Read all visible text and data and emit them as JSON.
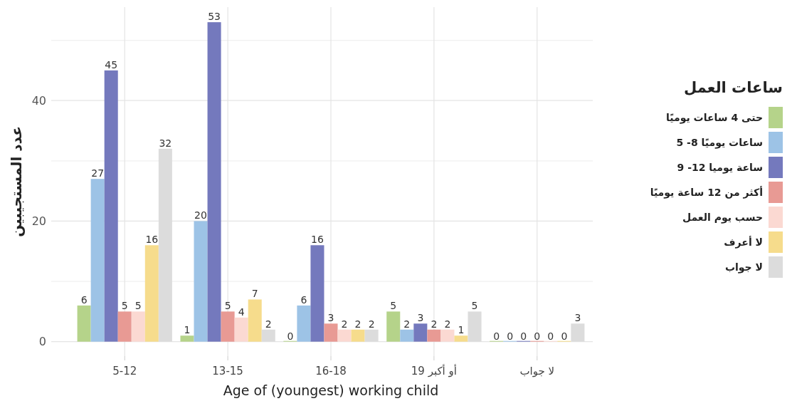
{
  "chart_data": {
    "type": "bar",
    "xlabel": "Age of (youngest) working child",
    "ylabel": "عدد المستجيبين",
    "legend_title": "ساعات العمل",
    "categories": [
      "5-12",
      "13-15",
      "16-18",
      "19 أو أكبر",
      "لا جواب"
    ],
    "series": [
      {
        "name": "حتى 4 ساعات يوميًا",
        "color": "#b5d38a",
        "values": [
          6,
          1,
          0,
          5,
          0
        ]
      },
      {
        "name": "5 -8 ساعات يوميًا",
        "color": "#9dc3e6",
        "values": [
          27,
          20,
          6,
          2,
          0
        ]
      },
      {
        "name": "9 -12 ساعة يوميا",
        "color": "#7479bd",
        "values": [
          45,
          53,
          16,
          3,
          0
        ]
      },
      {
        "name": "أكثر من 12 ساعة يوميًا",
        "color": "#e89a94",
        "values": [
          5,
          5,
          3,
          2,
          0
        ]
      },
      {
        "name": "حسب يوم العمل",
        "color": "#fbd9d2",
        "values": [
          5,
          4,
          2,
          2,
          0
        ]
      },
      {
        "name": "لا أعرف",
        "color": "#f6dc8c",
        "values": [
          16,
          7,
          2,
          1,
          0
        ]
      },
      {
        "name": "لا جواب",
        "color": "#dcdcdc",
        "values": [
          32,
          2,
          2,
          5,
          3
        ]
      }
    ],
    "ylim": [
      -2.4,
      55.5
    ],
    "yticks": [
      0,
      {
        "value": 10,
        "label": null
      },
      20,
      {
        "value": 30,
        "label": null
      },
      40,
      {
        "value": 50,
        "label": null
      }
    ],
    "grid": true,
    "legend": "right",
    "data_labels": true
  }
}
